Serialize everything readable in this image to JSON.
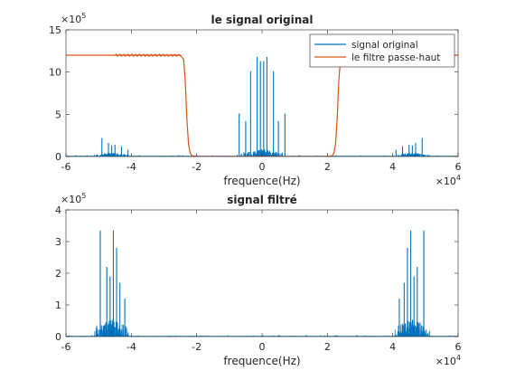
{
  "colors": {
    "series1": "#0072BD",
    "series2": "#D95319",
    "axis": "#262626"
  },
  "chart_data": [
    {
      "type": "line",
      "title": "le signal original",
      "xlabel": "frequence(Hz)",
      "ylabel": "",
      "x_exponent": "×10^4",
      "y_exponent": "×10^5",
      "xlim": [
        -60000,
        60000
      ],
      "ylim": [
        0,
        1500000
      ],
      "x_tick_values": [
        -60000,
        -40000,
        -20000,
        0,
        20000,
        40000,
        60000
      ],
      "x_tick_labels": [
        "-6",
        "-4",
        "-2",
        "0",
        "2",
        "4",
        "6"
      ],
      "y_tick_values": [
        0,
        500000,
        1000000,
        1500000
      ],
      "y_tick_labels": [
        "0",
        "5",
        "10",
        "15"
      ],
      "legend": {
        "location": "top-right",
        "entries": [
          "signal original",
          "le filtre passe-haut"
        ]
      },
      "series": [
        {
          "name": "signal original",
          "style": "spikes",
          "spikes": [
            [
              -49000,
              220000
            ],
            [
              -47000,
              160000
            ],
            [
              -46000,
              130000
            ],
            [
              -45000,
              140000
            ],
            [
              -43000,
              120000
            ],
            [
              -41000,
              80000
            ],
            [
              -7000,
              510000
            ],
            [
              -5000,
              420000
            ],
            [
              -3500,
              1010000
            ],
            [
              -1500,
              1180000
            ],
            [
              -500,
              1130000
            ],
            [
              500,
              1130000
            ],
            [
              1500,
              1180000
            ],
            [
              3500,
              1010000
            ],
            [
              5000,
              420000
            ],
            [
              7000,
              510000
            ],
            [
              41000,
              80000
            ],
            [
              43000,
              120000
            ],
            [
              45000,
              140000
            ],
            [
              46000,
              130000
            ],
            [
              47000,
              160000
            ],
            [
              49000,
              220000
            ]
          ],
          "clusters": [
            {
              "center": -46000,
              "width": 7000,
              "height": 45000
            },
            {
              "center": 0,
              "width": 9000,
              "height": 90000
            },
            {
              "center": 46000,
              "width": 7000,
              "height": 45000
            }
          ]
        },
        {
          "name": "le filtre passe-haut",
          "style": "line",
          "x": [
            -60000,
            -25000,
            -24000,
            -23500,
            -23000,
            -22500,
            -22000,
            -21500,
            -20000,
            20000,
            21500,
            22000,
            22500,
            23000,
            23500,
            24000,
            25000,
            60000
          ],
          "y": [
            1200000,
            1200000,
            1150000,
            900000,
            450000,
            150000,
            40000,
            10000,
            0,
            0,
            10000,
            40000,
            150000,
            450000,
            900000,
            1150000,
            1200000,
            1200000
          ]
        }
      ]
    },
    {
      "type": "line",
      "title": "signal filtré",
      "xlabel": "frequence(Hz)",
      "ylabel": "",
      "x_exponent": "×10^4",
      "y_exponent": "×10^5",
      "xlim": [
        -60000,
        60000
      ],
      "ylim": [
        0,
        400000
      ],
      "x_tick_values": [
        -60000,
        -40000,
        -20000,
        0,
        20000,
        40000,
        60000
      ],
      "x_tick_labels": [
        "-6",
        "-4",
        "-2",
        "0",
        "2",
        "4",
        "6"
      ],
      "y_tick_values": [
        0,
        100000,
        200000,
        300000,
        400000
      ],
      "y_tick_labels": [
        "0",
        "1",
        "2",
        "3",
        "4"
      ],
      "series": [
        {
          "style": "spikes",
          "spikes": [
            [
              -49500,
              335000
            ],
            [
              -47500,
              220000
            ],
            [
              -45500,
              335000
            ],
            [
              -44500,
              280000
            ],
            [
              -46500,
              190000
            ],
            [
              -43500,
              170000
            ],
            [
              -42000,
              120000
            ],
            [
              42000,
              120000
            ],
            [
              43500,
              170000
            ],
            [
              44500,
              280000
            ],
            [
              45500,
              335000
            ],
            [
              46500,
              190000
            ],
            [
              47500,
              220000
            ],
            [
              49500,
              335000
            ]
          ],
          "clusters": [
            {
              "center": -46000,
              "width": 7500,
              "height": 55000
            },
            {
              "center": 46000,
              "width": 7500,
              "height": 55000
            }
          ]
        }
      ]
    }
  ]
}
